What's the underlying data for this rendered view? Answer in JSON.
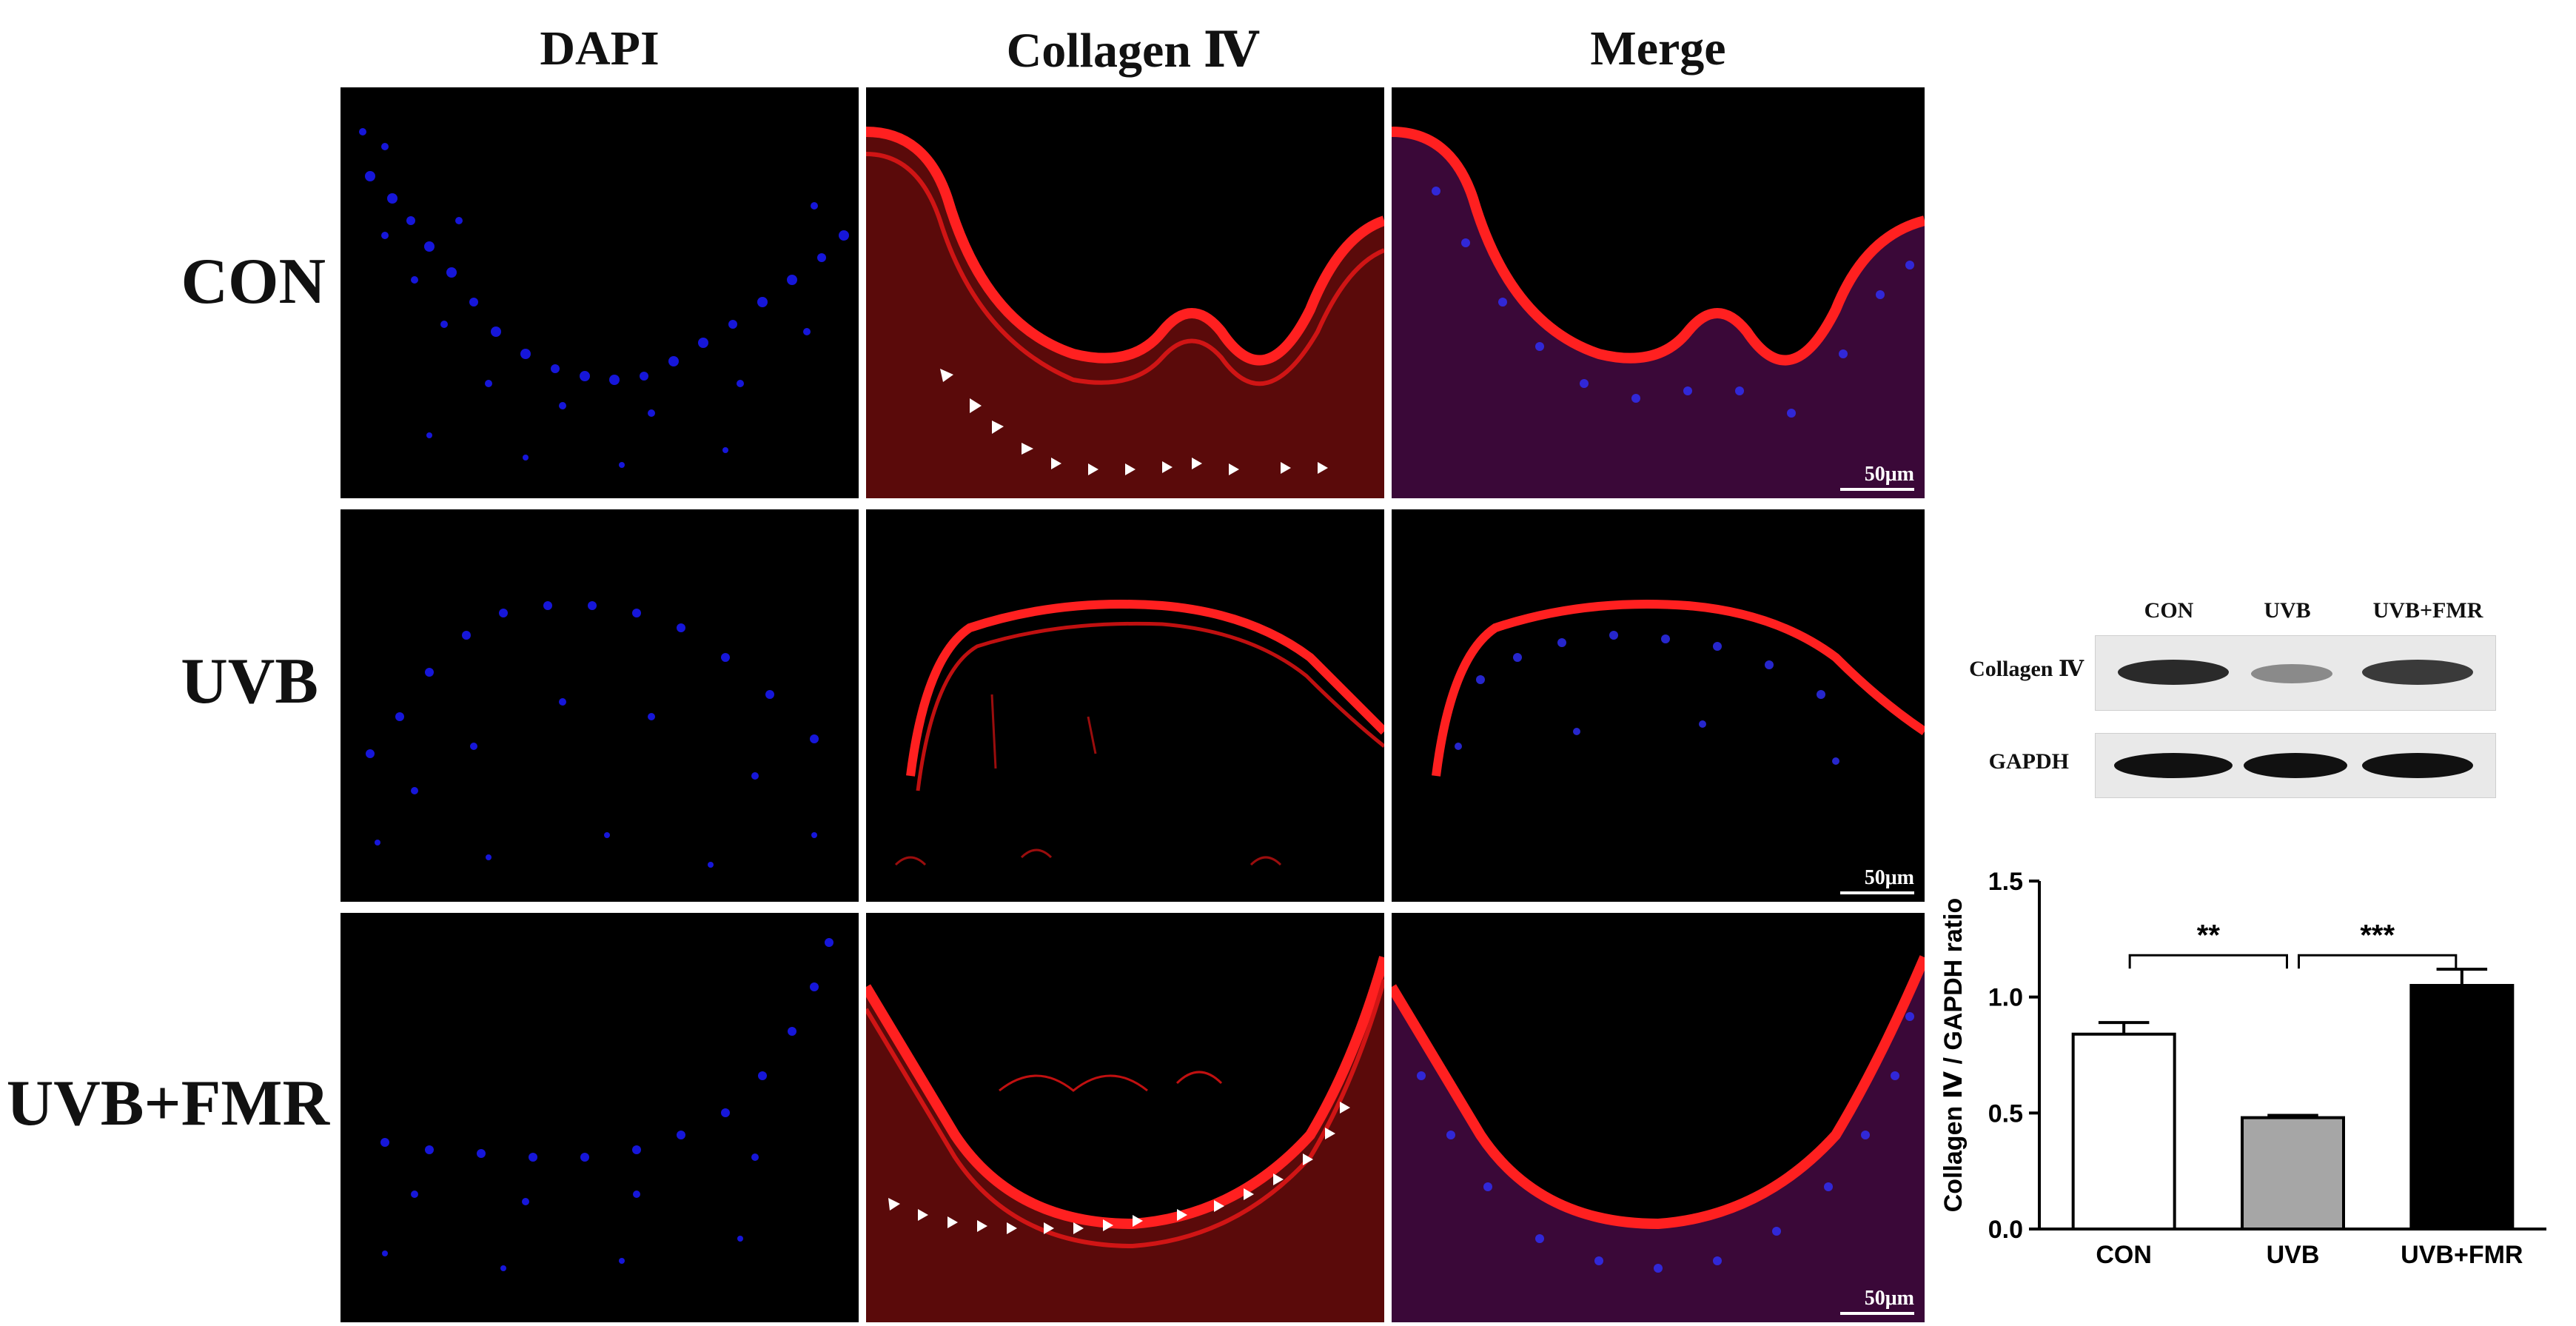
{
  "figure": {
    "columns": [
      "DAPI",
      "Collagen Ⅳ",
      "Merge"
    ],
    "rows": [
      "CON",
      "UVB",
      "UVB+FMR"
    ],
    "scale_bar": "50μm",
    "colors": {
      "dapi": "#1a1aff",
      "collagen": "#e01010",
      "background": "#000000"
    }
  },
  "western_blot": {
    "lanes": [
      "CON",
      "UVB",
      "UVB+FMR"
    ],
    "rows": [
      "Collagen Ⅳ",
      "GAPDH"
    ],
    "collagen_intensity": [
      0.85,
      0.45,
      0.9
    ],
    "gapdh_intensity": [
      1.0,
      1.0,
      1.0
    ]
  },
  "chart_data": {
    "type": "bar",
    "categories": [
      "CON",
      "UVB",
      "UVB+FMR"
    ],
    "values": [
      0.84,
      0.48,
      1.05
    ],
    "errors": [
      0.05,
      0.01,
      0.07
    ],
    "bar_colors": [
      "#ffffff",
      "#a6a6a6",
      "#000000"
    ],
    "ylabel": "Collagen Ⅳ / GAPDH ratio",
    "ylim": [
      0,
      1.5
    ],
    "yticks": [
      "0.0",
      "0.5",
      "1.0",
      "1.5"
    ],
    "significance": [
      {
        "from": "CON",
        "to": "UVB",
        "label": "**"
      },
      {
        "from": "UVB",
        "to": "UVB+FMR",
        "label": "***"
      }
    ]
  }
}
